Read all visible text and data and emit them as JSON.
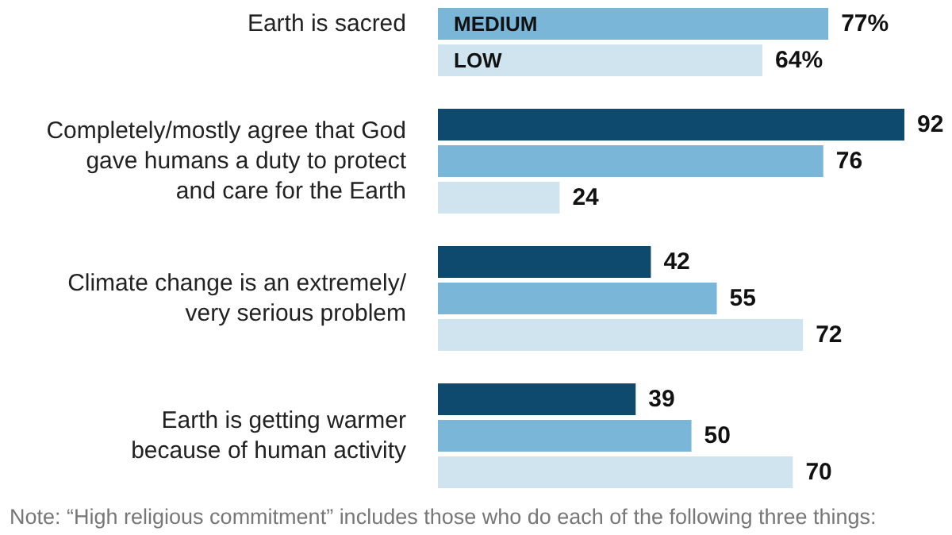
{
  "chart_data": {
    "type": "bar",
    "orientation": "horizontal",
    "categories": [
      "Earth is sacred",
      "Completely/mostly agree that God\ngave humans a duty to protect\nand care for the Earth",
      "Climate change is an extremely/\nvery serious problem",
      "Earth is getting warmer\nbecause of human activity"
    ],
    "series": [
      {
        "color": "#0d4a6e",
        "values": [
          null,
          92,
          42,
          39
        ]
      },
      {
        "name": "MEDIUM",
        "color": "#79b6d8",
        "values": [
          77,
          76,
          55,
          50
        ],
        "value_labels": [
          "77%",
          "76",
          "55",
          "50"
        ]
      },
      {
        "name": "LOW",
        "color": "#cfe4ef",
        "values": [
          64,
          24,
          72,
          70
        ],
        "value_labels": [
          "64%",
          "24",
          "72",
          "70"
        ]
      }
    ],
    "data_labels": true,
    "annotations": [
      "Note: “High religious commitment” includes those who do each of the following three things:"
    ]
  }
}
